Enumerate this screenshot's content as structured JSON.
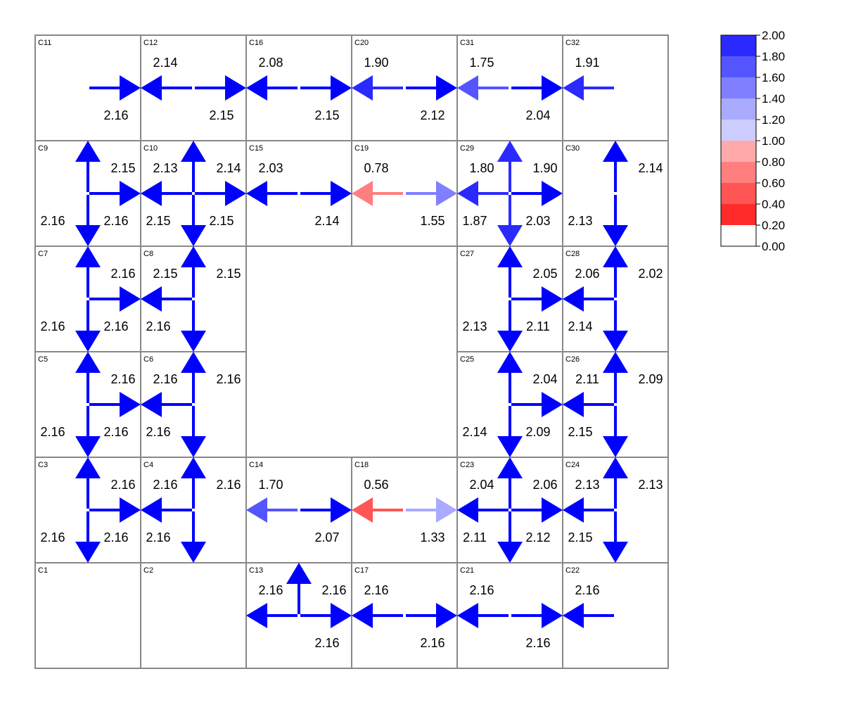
{
  "colors": {
    "grid": "#888888",
    "background": "#ffffff",
    "text": "#000000",
    "scale": [
      {
        "min": 0.0,
        "max": 0.2,
        "color": "#ffffff"
      },
      {
        "min": 0.2,
        "max": 0.4,
        "color": "#ff2a2a"
      },
      {
        "min": 0.4,
        "max": 0.6,
        "color": "#ff5555"
      },
      {
        "min": 0.6,
        "max": 0.8,
        "color": "#ff7f7f"
      },
      {
        "min": 0.8,
        "max": 1.0,
        "color": "#ffaaaa"
      },
      {
        "min": 1.0,
        "max": 1.2,
        "color": "#ccccff"
      },
      {
        "min": 1.2,
        "max": 1.4,
        "color": "#aaaaff"
      },
      {
        "min": 1.4,
        "max": 1.6,
        "color": "#7f7fff"
      },
      {
        "min": 1.6,
        "max": 1.8,
        "color": "#5555ff"
      },
      {
        "min": 1.8,
        "max": 2.0,
        "color": "#2a2aff"
      },
      {
        "min": 2.0,
        "max": 99,
        "color": "#0000ff"
      }
    ]
  },
  "legend": {
    "ticks": [
      "0.00",
      "0.20",
      "0.40",
      "0.60",
      "0.80",
      "1.00",
      "1.20",
      "1.40",
      "1.60",
      "1.80",
      "2.00"
    ],
    "band_colors": [
      "#ffffff",
      "#ff2a2a",
      "#ff5555",
      "#ff7f7f",
      "#ffaaaa",
      "#ccccff",
      "#aaaaff",
      "#7f7fff",
      "#5555ff",
      "#2a2aff"
    ]
  },
  "grid": {
    "cols": 6,
    "rows": 6,
    "cells": [
      {
        "id": "C11",
        "col": 0,
        "row": 0
      },
      {
        "id": "C12",
        "col": 1,
        "row": 0
      },
      {
        "id": "C16",
        "col": 2,
        "row": 0
      },
      {
        "id": "C20",
        "col": 3,
        "row": 0
      },
      {
        "id": "C31",
        "col": 4,
        "row": 0
      },
      {
        "id": "C32",
        "col": 5,
        "row": 0
      },
      {
        "id": "C9",
        "col": 0,
        "row": 1
      },
      {
        "id": "C10",
        "col": 1,
        "row": 1
      },
      {
        "id": "C15",
        "col": 2,
        "row": 1
      },
      {
        "id": "C19",
        "col": 3,
        "row": 1
      },
      {
        "id": "C29",
        "col": 4,
        "row": 1
      },
      {
        "id": "C30",
        "col": 5,
        "row": 1
      },
      {
        "id": "C7",
        "col": 0,
        "row": 2
      },
      {
        "id": "C8",
        "col": 1,
        "row": 2
      },
      {
        "id": "C27",
        "col": 4,
        "row": 2
      },
      {
        "id": "C28",
        "col": 5,
        "row": 2
      },
      {
        "id": "C5",
        "col": 0,
        "row": 3
      },
      {
        "id": "C6",
        "col": 1,
        "row": 3
      },
      {
        "id": "C25",
        "col": 4,
        "row": 3
      },
      {
        "id": "C26",
        "col": 5,
        "row": 3
      },
      {
        "id": "C3",
        "col": 0,
        "row": 4
      },
      {
        "id": "C4",
        "col": 1,
        "row": 4
      },
      {
        "id": "C14",
        "col": 2,
        "row": 4
      },
      {
        "id": "C18",
        "col": 3,
        "row": 4
      },
      {
        "id": "C23",
        "col": 4,
        "row": 4
      },
      {
        "id": "C24",
        "col": 5,
        "row": 4
      },
      {
        "id": "C1",
        "col": 0,
        "row": 5
      },
      {
        "id": "C2",
        "col": 1,
        "row": 5
      },
      {
        "id": "C13",
        "col": 2,
        "row": 5
      },
      {
        "id": "C17",
        "col": 3,
        "row": 5
      },
      {
        "id": "C21",
        "col": 4,
        "row": 5
      },
      {
        "id": "C22",
        "col": 5,
        "row": 5
      }
    ]
  },
  "flows": [
    {
      "cell": "C11",
      "dir": "right",
      "label": "2.16"
    },
    {
      "cell": "C12",
      "dir": "left",
      "label": "2.14"
    },
    {
      "cell": "C12",
      "dir": "right",
      "label": "2.15"
    },
    {
      "cell": "C16",
      "dir": "left",
      "label": "2.08"
    },
    {
      "cell": "C16",
      "dir": "right",
      "label": "2.15"
    },
    {
      "cell": "C20",
      "dir": "left",
      "label": "1.90"
    },
    {
      "cell": "C20",
      "dir": "right",
      "label": "2.12"
    },
    {
      "cell": "C31",
      "dir": "left",
      "label": "1.75"
    },
    {
      "cell": "C31",
      "dir": "right",
      "label": "2.04"
    },
    {
      "cell": "C32",
      "dir": "left",
      "label": "1.91"
    },
    {
      "cell": "C9",
      "dir": "up",
      "label": "2.15"
    },
    {
      "cell": "C9",
      "dir": "right",
      "label": "2.16"
    },
    {
      "cell": "C9",
      "dir": "down",
      "label": "2.16"
    },
    {
      "cell": "C10",
      "dir": "left",
      "label": "2.13"
    },
    {
      "cell": "C10",
      "dir": "up",
      "label": "2.14"
    },
    {
      "cell": "C10",
      "dir": "right",
      "label": "2.15"
    },
    {
      "cell": "C10",
      "dir": "down",
      "label": "2.15"
    },
    {
      "cell": "C15",
      "dir": "left",
      "label": "2.03"
    },
    {
      "cell": "C15",
      "dir": "right",
      "label": "2.14"
    },
    {
      "cell": "C19",
      "dir": "left",
      "label": "0.78"
    },
    {
      "cell": "C19",
      "dir": "right",
      "label": "1.55"
    },
    {
      "cell": "C29",
      "dir": "left",
      "label": "1.80"
    },
    {
      "cell": "C29",
      "dir": "up",
      "label": "1.90"
    },
    {
      "cell": "C29",
      "dir": "down",
      "label": "1.87"
    },
    {
      "cell": "C29",
      "dir": "right",
      "label": "2.03"
    },
    {
      "cell": "C30",
      "dir": "up",
      "label": "2.14"
    },
    {
      "cell": "C30",
      "dir": "down",
      "label": "2.13"
    },
    {
      "cell": "C7",
      "dir": "up",
      "label": "2.16"
    },
    {
      "cell": "C7",
      "dir": "right",
      "label": "2.16"
    },
    {
      "cell": "C7",
      "dir": "down",
      "label": "2.16"
    },
    {
      "cell": "C8",
      "dir": "left",
      "label": "2.15"
    },
    {
      "cell": "C8",
      "dir": "up",
      "label": "2.15"
    },
    {
      "cell": "C8",
      "dir": "down",
      "label": "2.16"
    },
    {
      "cell": "C27",
      "dir": "up",
      "label": "2.05"
    },
    {
      "cell": "C27",
      "dir": "down",
      "label": "2.13"
    },
    {
      "cell": "C27",
      "dir": "right",
      "label": "2.11"
    },
    {
      "cell": "C28",
      "dir": "left",
      "label": "2.06"
    },
    {
      "cell": "C28",
      "dir": "up",
      "label": "2.02"
    },
    {
      "cell": "C28",
      "dir": "down",
      "label": "2.14"
    },
    {
      "cell": "C5",
      "dir": "up",
      "label": "2.16"
    },
    {
      "cell": "C5",
      "dir": "right",
      "label": "2.16"
    },
    {
      "cell": "C5",
      "dir": "down",
      "label": "2.16"
    },
    {
      "cell": "C6",
      "dir": "left",
      "label": "2.16"
    },
    {
      "cell": "C6",
      "dir": "up",
      "label": "2.16"
    },
    {
      "cell": "C6",
      "dir": "down",
      "label": "2.16"
    },
    {
      "cell": "C25",
      "dir": "up",
      "label": "2.04"
    },
    {
      "cell": "C25",
      "dir": "down",
      "label": "2.14"
    },
    {
      "cell": "C25",
      "dir": "right",
      "label": "2.09"
    },
    {
      "cell": "C26",
      "dir": "left",
      "label": "2.11"
    },
    {
      "cell": "C26",
      "dir": "up",
      "label": "2.09"
    },
    {
      "cell": "C26",
      "dir": "down",
      "label": "2.15"
    },
    {
      "cell": "C3",
      "dir": "up",
      "label": "2.16"
    },
    {
      "cell": "C3",
      "dir": "right",
      "label": "2.16"
    },
    {
      "cell": "C3",
      "dir": "down",
      "label": "2.16"
    },
    {
      "cell": "C4",
      "dir": "left",
      "label": "2.16"
    },
    {
      "cell": "C4",
      "dir": "up",
      "label": "2.16"
    },
    {
      "cell": "C4",
      "dir": "down",
      "label": "2.16"
    },
    {
      "cell": "C14",
      "dir": "left",
      "label": "1.70"
    },
    {
      "cell": "C14",
      "dir": "right",
      "label": "2.07"
    },
    {
      "cell": "C18",
      "dir": "left",
      "label": "0.56"
    },
    {
      "cell": "C18",
      "dir": "right",
      "label": "1.33"
    },
    {
      "cell": "C23",
      "dir": "left",
      "label": "2.04"
    },
    {
      "cell": "C23",
      "dir": "up",
      "label": "2.06"
    },
    {
      "cell": "C23",
      "dir": "down",
      "label": "2.11"
    },
    {
      "cell": "C23",
      "dir": "right",
      "label": "2.12"
    },
    {
      "cell": "C24",
      "dir": "left",
      "label": "2.13"
    },
    {
      "cell": "C24",
      "dir": "up",
      "label": "2.13"
    },
    {
      "cell": "C24",
      "dir": "down",
      "label": "2.15"
    },
    {
      "cell": "C13",
      "dir": "left",
      "label": "2.16"
    },
    {
      "cell": "C13",
      "dir": "up",
      "label": "2.16"
    },
    {
      "cell": "C13",
      "dir": "right",
      "label": "2.16"
    },
    {
      "cell": "C17",
      "dir": "left",
      "label": "2.16"
    },
    {
      "cell": "C17",
      "dir": "right",
      "label": "2.16"
    },
    {
      "cell": "C21",
      "dir": "left",
      "label": "2.16"
    },
    {
      "cell": "C21",
      "dir": "right",
      "label": "2.16"
    },
    {
      "cell": "C22",
      "dir": "left",
      "label": "2.16"
    }
  ]
}
